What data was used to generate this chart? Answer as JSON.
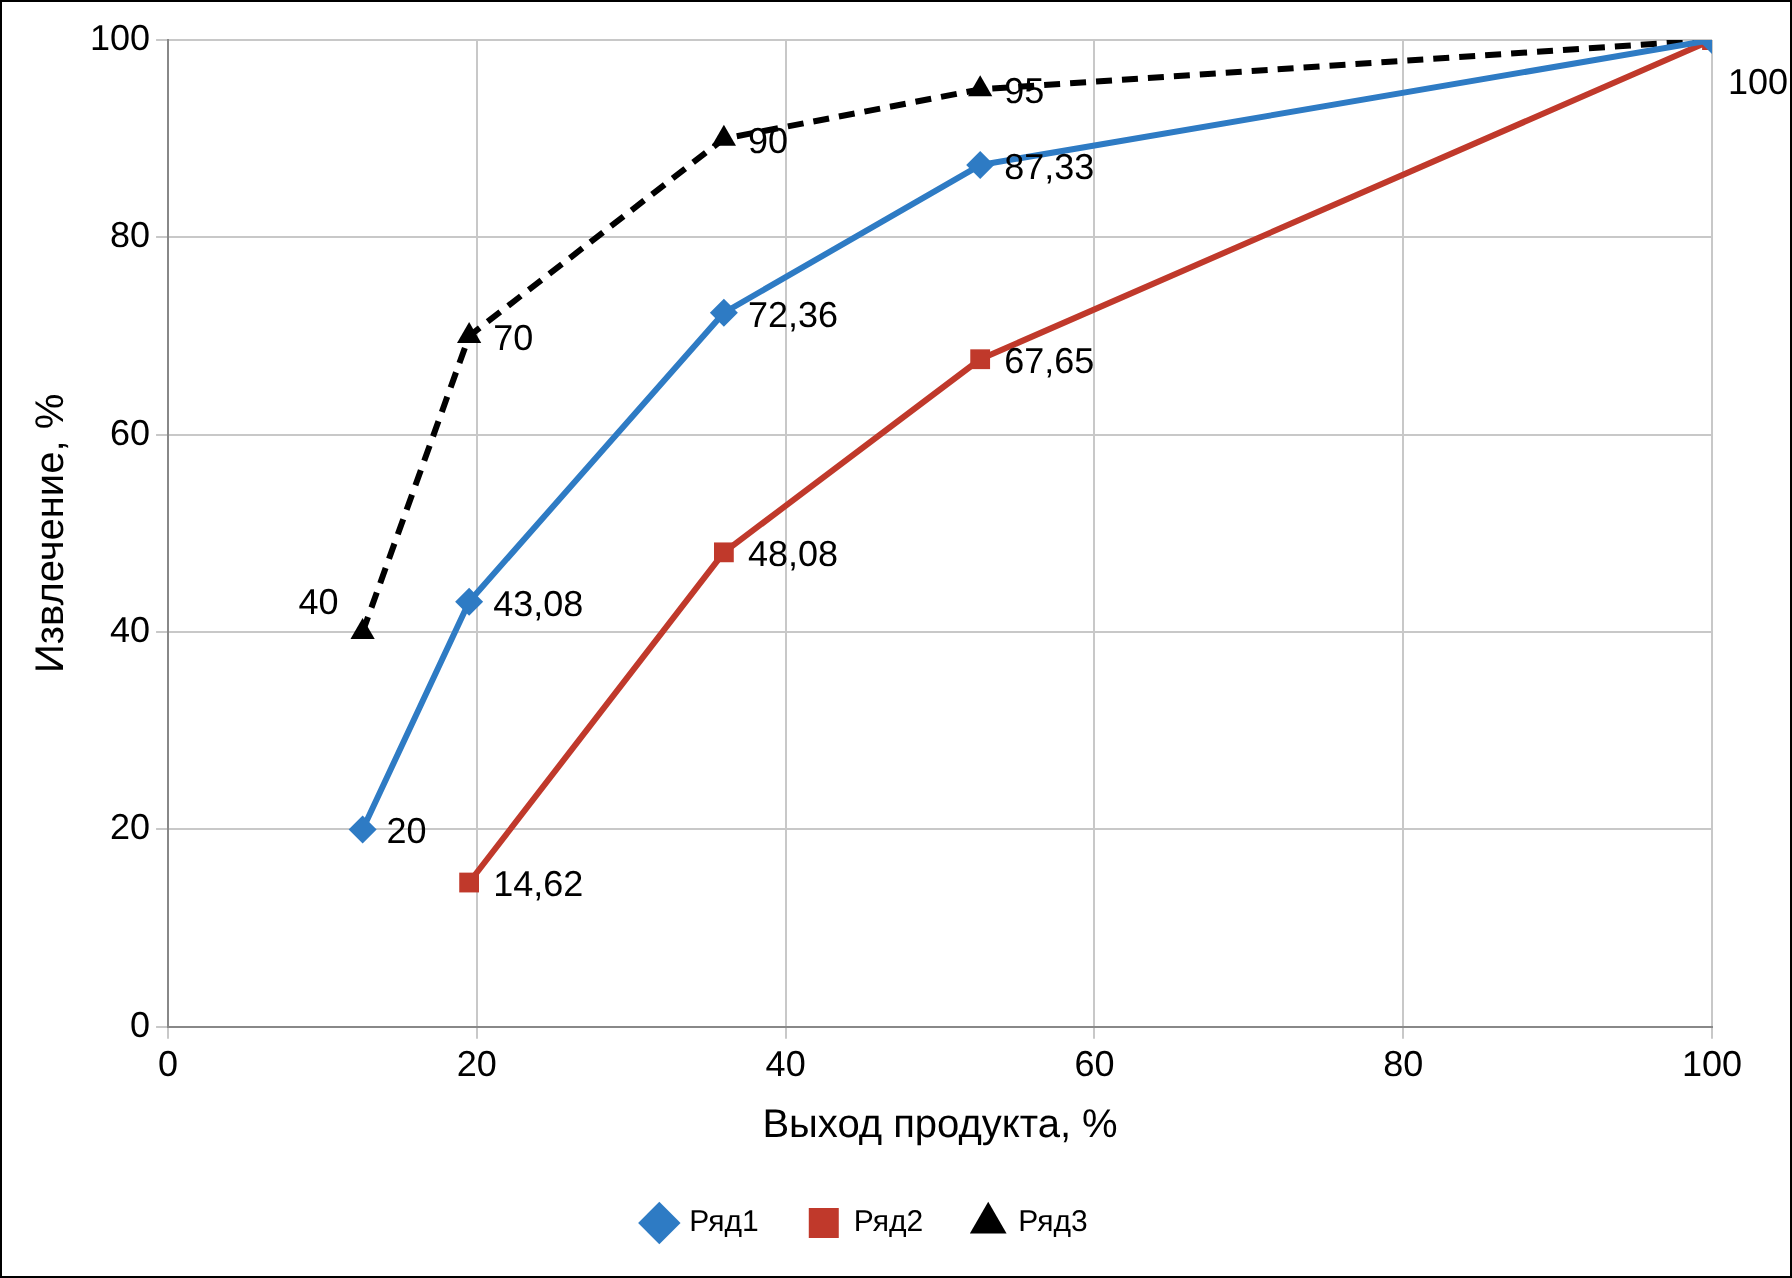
{
  "chart_data": {
    "type": "line",
    "xlabel": "Выход продукта, %",
    "ylabel": "Извлечение, %",
    "xlim": [
      0,
      100
    ],
    "xticks": [
      0,
      20,
      40,
      60,
      80,
      100
    ],
    "ylim": [
      0,
      100
    ],
    "yticks": [
      0,
      20,
      40,
      60,
      80,
      100
    ],
    "grid": true,
    "legend": "bottom",
    "series": [
      {
        "name": "Ряд1",
        "color": "#2e7bc4",
        "marker": "diamond",
        "line_style": "solid",
        "x": [
          12.6,
          19.5,
          36,
          52.6,
          100
        ],
        "values": [
          20,
          43.08,
          72.36,
          87.33,
          100
        ],
        "value_labels": [
          "20",
          "43,08",
          "72,36",
          "87,33",
          null
        ]
      },
      {
        "name": "Ряд2",
        "color": "#c0392b",
        "marker": "square",
        "line_style": "solid",
        "x": [
          19.5,
          36,
          52.6,
          100
        ],
        "values": [
          14.62,
          48.08,
          67.65,
          100
        ],
        "value_labels": [
          "14,62",
          "48,08",
          "67,65",
          null
        ]
      },
      {
        "name": "Ряд3",
        "color": "#000000",
        "marker": "triangle",
        "line_style": "dashed",
        "x": [
          12.6,
          19.5,
          36,
          52.6,
          100
        ],
        "values": [
          40,
          70,
          90,
          95,
          100
        ],
        "value_labels": [
          "40",
          "70",
          "90",
          "95",
          "100"
        ]
      }
    ]
  }
}
